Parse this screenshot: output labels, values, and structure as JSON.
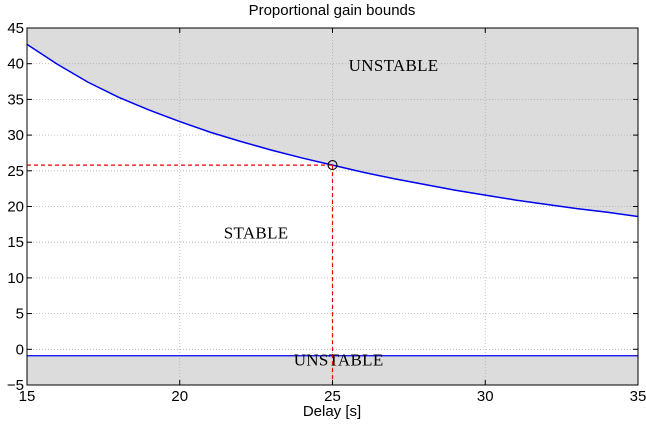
{
  "chart_data": {
    "type": "area",
    "title": "Proportional gain bounds",
    "xlabel": "Delay [s]",
    "ylabel": "",
    "xlim": [
      15,
      35
    ],
    "ylim": [
      -5,
      45
    ],
    "xticks": [
      15,
      20,
      25,
      30,
      35
    ],
    "yticks": [
      -5,
      0,
      5,
      10,
      15,
      20,
      25,
      30,
      35,
      40,
      45
    ],
    "grid": true,
    "series": [
      {
        "type": "line",
        "x": [
          15,
          16,
          17,
          18,
          19,
          20,
          21,
          22,
          23,
          24,
          25,
          26,
          27,
          28,
          29,
          30,
          31,
          32,
          33,
          34,
          35
        ],
        "values": [
          42.7,
          39.9,
          37.4,
          35.3,
          33.5,
          31.9,
          30.4,
          29.1,
          27.9,
          26.8,
          25.8,
          24.8,
          23.9,
          23.1,
          22.3,
          21.6,
          20.9,
          20.3,
          19.7,
          19.2,
          18.6
        ]
      },
      {
        "type": "line",
        "x": [
          15,
          35
        ],
        "values": [
          -0.9,
          -0.9
        ]
      }
    ],
    "marker": {
      "x": 25,
      "y": 25.8
    },
    "annotations": [
      {
        "text": "UNSTABLE",
        "x": 27.0,
        "y": 39
      },
      {
        "text": "STABLE",
        "x": 22.5,
        "y": 15.5
      },
      {
        "text": "UNSTABLE",
        "x": 25.2,
        "y": -2.3
      }
    ],
    "colors": {
      "boundary": "#0000ee",
      "guide": "#ee0000",
      "unstable_fill": "#dcdcdc",
      "grid": "#b0b0b0"
    }
  }
}
